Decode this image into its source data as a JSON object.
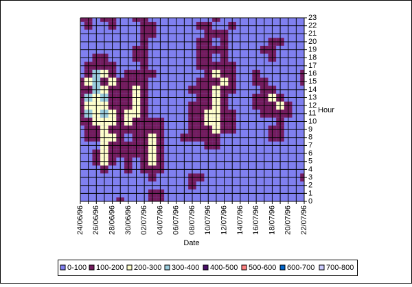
{
  "chart_data": {
    "type": "contour",
    "x_label": "Date",
    "y_label": "Hour",
    "categories": [
      "24/06/96",
      null,
      "26/06/96",
      null,
      "28/06/96",
      null,
      "30/06/96",
      null,
      "02/07/96",
      null,
      "04/07/96",
      null,
      "06/07/96",
      null,
      "08/07/96",
      null,
      "10/07/96",
      null,
      "12/07/96",
      null,
      "14/07/96",
      null,
      "16/07/96",
      null,
      "18/07/96",
      null,
      "20/07/96",
      null,
      "22/07/96"
    ],
    "ylim": [
      0,
      23
    ],
    "yticks": [
      0,
      1,
      2,
      3,
      4,
      5,
      6,
      7,
      8,
      9,
      10,
      11,
      12,
      13,
      14,
      15,
      16,
      17,
      18,
      19,
      20,
      21,
      22,
      23
    ],
    "grid": true,
    "levels": [
      0,
      100,
      200,
      300,
      400,
      500,
      600,
      700,
      800
    ],
    "series": [
      {
        "name": "0-100",
        "color": "#8080f0"
      },
      {
        "name": "100-200",
        "color": "#731c5e"
      },
      {
        "name": "200-300",
        "color": "#ffffcc"
      },
      {
        "name": "300-400",
        "color": "#99ccdd"
      },
      {
        "name": "400-500",
        "color": "#4b0f6b"
      },
      {
        "name": "500-600",
        "color": "#ff8080"
      },
      {
        "name": "600-700",
        "color": "#0066cc"
      },
      {
        "name": "700-800",
        "color": "#ccccff"
      }
    ],
    "z": [
      [
        50,
        50,
        50,
        50,
        50,
        150,
        50,
        50,
        50,
        150,
        150,
        50,
        50,
        50,
        50,
        50,
        50,
        50,
        50,
        50,
        50,
        50,
        50,
        50,
        50,
        50,
        50,
        50,
        50
      ],
      [
        50,
        50,
        50,
        50,
        50,
        50,
        50,
        50,
        50,
        150,
        150,
        50,
        50,
        50,
        50,
        50,
        50,
        50,
        50,
        50,
        50,
        50,
        50,
        50,
        50,
        50,
        50,
        50,
        50
      ],
      [
        50,
        50,
        50,
        50,
        50,
        50,
        50,
        50,
        50,
        50,
        50,
        50,
        50,
        50,
        150,
        50,
        50,
        50,
        50,
        50,
        50,
        50,
        50,
        50,
        50,
        50,
        50,
        50,
        50
      ],
      [
        50,
        50,
        50,
        50,
        50,
        50,
        50,
        50,
        50,
        150,
        50,
        50,
        50,
        50,
        150,
        150,
        50,
        50,
        50,
        50,
        50,
        50,
        50,
        50,
        50,
        50,
        50,
        50,
        150
      ],
      [
        50,
        50,
        50,
        150,
        50,
        50,
        150,
        50,
        150,
        150,
        150,
        50,
        50,
        50,
        50,
        50,
        50,
        50,
        50,
        50,
        50,
        50,
        50,
        50,
        50,
        50,
        50,
        50,
        50
      ],
      [
        50,
        50,
        150,
        250,
        150,
        50,
        150,
        50,
        150,
        250,
        150,
        50,
        50,
        50,
        50,
        50,
        50,
        50,
        50,
        50,
        50,
        50,
        50,
        50,
        50,
        50,
        50,
        50,
        50
      ],
      [
        50,
        50,
        150,
        250,
        150,
        150,
        150,
        150,
        150,
        250,
        150,
        50,
        50,
        50,
        50,
        50,
        50,
        50,
        50,
        50,
        50,
        50,
        50,
        50,
        50,
        50,
        50,
        50,
        50
      ],
      [
        50,
        50,
        50,
        250,
        150,
        150,
        150,
        150,
        150,
        250,
        150,
        50,
        50,
        50,
        50,
        50,
        150,
        150,
        50,
        50,
        50,
        50,
        50,
        50,
        50,
        50,
        50,
        50,
        50
      ],
      [
        50,
        150,
        150,
        250,
        250,
        150,
        50,
        150,
        150,
        250,
        150,
        50,
        50,
        150,
        150,
        150,
        150,
        150,
        50,
        50,
        50,
        50,
        50,
        50,
        150,
        150,
        50,
        50,
        50
      ],
      [
        50,
        150,
        150,
        250,
        150,
        150,
        150,
        150,
        150,
        150,
        150,
        50,
        50,
        50,
        150,
        150,
        150,
        250,
        150,
        150,
        50,
        50,
        50,
        50,
        150,
        150,
        50,
        50,
        50
      ],
      [
        150,
        150,
        250,
        250,
        250,
        150,
        250,
        150,
        150,
        150,
        150,
        50,
        50,
        50,
        150,
        150,
        250,
        250,
        150,
        150,
        50,
        50,
        50,
        50,
        50,
        150,
        50,
        50,
        50
      ],
      [
        150,
        350,
        250,
        350,
        250,
        150,
        250,
        250,
        150,
        50,
        50,
        50,
        50,
        50,
        150,
        150,
        250,
        250,
        150,
        150,
        50,
        50,
        50,
        150,
        150,
        150,
        150,
        50,
        50
      ],
      [
        150,
        250,
        250,
        250,
        150,
        150,
        150,
        250,
        150,
        50,
        50,
        50,
        50,
        50,
        150,
        150,
        150,
        250,
        150,
        50,
        50,
        50,
        150,
        150,
        150,
        250,
        150,
        50,
        50
      ],
      [
        150,
        350,
        250,
        350,
        150,
        150,
        150,
        250,
        150,
        50,
        50,
        50,
        50,
        50,
        50,
        150,
        150,
        250,
        150,
        50,
        50,
        50,
        150,
        150,
        250,
        150,
        50,
        50,
        50
      ],
      [
        150,
        150,
        350,
        250,
        150,
        150,
        150,
        250,
        150,
        50,
        50,
        50,
        50,
        50,
        150,
        150,
        150,
        250,
        150,
        150,
        50,
        50,
        50,
        150,
        150,
        50,
        50,
        50,
        50
      ],
      [
        150,
        250,
        350,
        150,
        250,
        150,
        150,
        150,
        150,
        50,
        50,
        50,
        50,
        50,
        50,
        150,
        150,
        150,
        250,
        150,
        50,
        50,
        150,
        150,
        50,
        50,
        50,
        50,
        150
      ],
      [
        50,
        150,
        350,
        250,
        150,
        50,
        150,
        150,
        150,
        150,
        50,
        50,
        50,
        50,
        50,
        50,
        150,
        250,
        150,
        150,
        50,
        50,
        150,
        50,
        50,
        50,
        50,
        50,
        150
      ],
      [
        50,
        150,
        150,
        150,
        150,
        50,
        50,
        50,
        150,
        50,
        50,
        50,
        50,
        50,
        50,
        150,
        150,
        150,
        150,
        150,
        50,
        50,
        50,
        50,
        50,
        50,
        50,
        50,
        50
      ],
      [
        50,
        50,
        150,
        150,
        50,
        50,
        50,
        150,
        150,
        50,
        50,
        50,
        50,
        50,
        50,
        150,
        150,
        50,
        150,
        50,
        50,
        50,
        50,
        50,
        150,
        50,
        50,
        50,
        50
      ],
      [
        50,
        50,
        50,
        50,
        50,
        50,
        50,
        150,
        150,
        50,
        50,
        50,
        50,
        50,
        50,
        150,
        150,
        150,
        150,
        50,
        50,
        50,
        50,
        150,
        150,
        50,
        50,
        50,
        50
      ],
      [
        50,
        50,
        50,
        50,
        50,
        50,
        50,
        50,
        150,
        50,
        50,
        50,
        50,
        50,
        50,
        150,
        150,
        50,
        150,
        50,
        50,
        50,
        50,
        50,
        150,
        150,
        50,
        50,
        50
      ],
      [
        50,
        50,
        50,
        50,
        50,
        50,
        50,
        50,
        150,
        150,
        50,
        50,
        50,
        50,
        50,
        50,
        150,
        150,
        150,
        50,
        50,
        50,
        50,
        50,
        50,
        50,
        50,
        50,
        50
      ],
      [
        50,
        150,
        50,
        50,
        150,
        50,
        50,
        50,
        150,
        150,
        50,
        50,
        50,
        50,
        50,
        150,
        150,
        50,
        50,
        150,
        50,
        50,
        50,
        50,
        50,
        50,
        50,
        50,
        50
      ],
      [
        150,
        150,
        50,
        150,
        150,
        50,
        50,
        150,
        150,
        50,
        50,
        50,
        50,
        50,
        50,
        50,
        50,
        150,
        50,
        50,
        50,
        50,
        50,
        50,
        50,
        50,
        50,
        50,
        50
      ]
    ]
  }
}
